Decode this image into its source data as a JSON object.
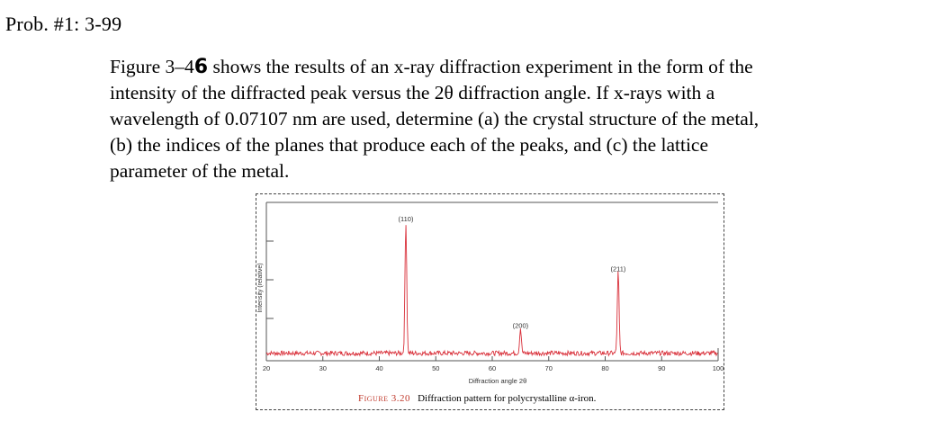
{
  "header": {
    "title": "Prob. #1: 3-99"
  },
  "problem": {
    "line1_before": "Figure 3–4",
    "line1_scribble": "6",
    "line1_after": " shows the results of an x-ray diffraction experiment in the form of the",
    "line2": "intensity of the diffracted peak versus the 2θ diffraction angle. If x-rays with a",
    "line3": "wavelength of 0.07107 nm are used, determine (a) the crystal structure of the metal,",
    "line4": "(b) the indices of the planes that produce each of the peaks, and (c) the lattice",
    "line5": "parameter of the metal."
  },
  "figure": {
    "caption_label": "Figure 3.20",
    "caption_text": "Diffraction pattern for polycrystalline α-iron.",
    "accent_color": "#d9303a"
  },
  "chart_data": {
    "type": "line",
    "xlabel": "Diffraction angle 2θ",
    "ylabel": "Intensity (relative)",
    "xlim": [
      20,
      100
    ],
    "xticks": [
      20,
      30,
      40,
      50,
      60,
      70,
      80,
      90,
      100
    ],
    "ylim": [
      0,
      1
    ],
    "peaks": [
      {
        "label": "(110)",
        "x": 44.7,
        "y": 1.0
      },
      {
        "label": "(200)",
        "x": 65.0,
        "y": 0.19
      },
      {
        "label": "(211)",
        "x": 82.3,
        "y": 0.62
      }
    ],
    "baseline": 0.03
  }
}
